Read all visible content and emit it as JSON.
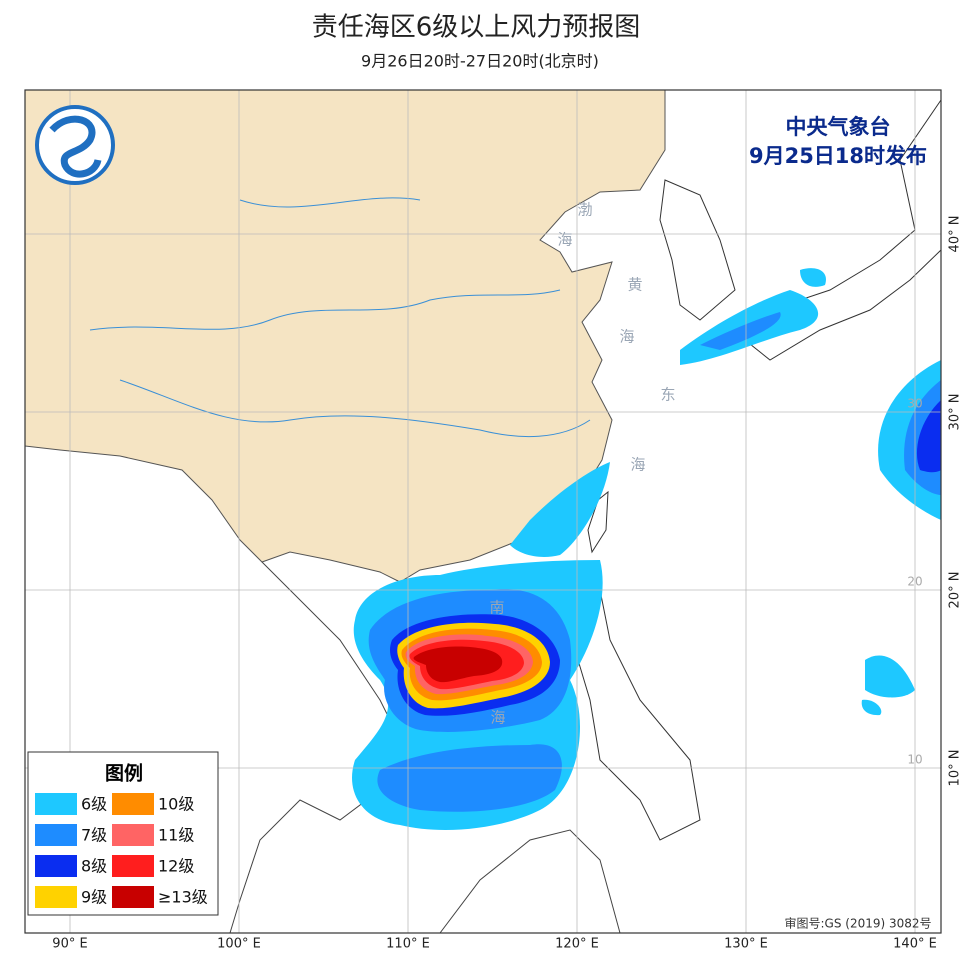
{
  "header": {
    "title": "责任海区6级以上风力预报图",
    "subtitle": "9月26日20时-27日20时(北京时)"
  },
  "issuer": {
    "name": "中央气象台",
    "time": "9月25日18时发布"
  },
  "sea_labels": [
    "渤",
    "海",
    "黄",
    "海",
    "东",
    "海",
    "南",
    "海"
  ],
  "lon_labels": [
    {
      "value": 90,
      "label": "90° E"
    },
    {
      "value": 100,
      "label": "100° E"
    },
    {
      "value": 110,
      "label": "110° E"
    },
    {
      "value": 120,
      "label": "120° E"
    },
    {
      "value": 130,
      "label": "130° E"
    },
    {
      "value": 140,
      "label": "140° E"
    }
  ],
  "lat_labels": [
    {
      "value": 40,
      "label": "40° N"
    },
    {
      "value": 30,
      "label": "30° N"
    },
    {
      "value": 20,
      "label": "20° N"
    },
    {
      "value": 10,
      "label": "10° N"
    }
  ],
  "grid_numbers": [
    30,
    20,
    10
  ],
  "legend": {
    "title": "图例",
    "items": [
      {
        "label": "6级",
        "color": "#1ec8ff"
      },
      {
        "label": "7级",
        "color": "#1e8cff"
      },
      {
        "label": "8级",
        "color": "#0a2df0"
      },
      {
        "label": "9级",
        "color": "#ffd200"
      },
      {
        "label": "10级",
        "color": "#ff8c00"
      },
      {
        "label": "11级",
        "color": "#ff6464"
      },
      {
        "label": "12级",
        "color": "#ff1e1e"
      },
      {
        "label": "≥13级",
        "color": "#c80000"
      }
    ]
  },
  "footer": "审图号:GS (2019) 3082号"
}
